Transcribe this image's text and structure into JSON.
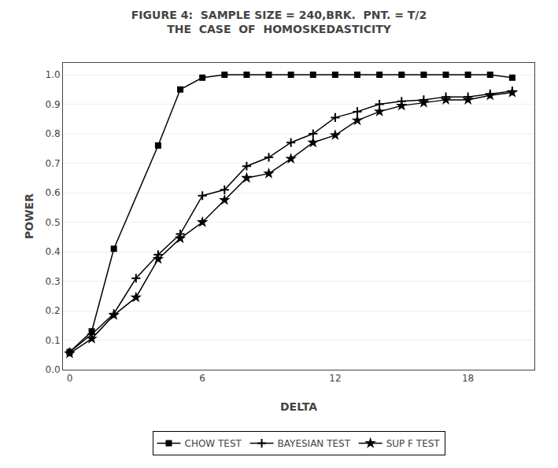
{
  "chart_data": {
    "type": "line",
    "title": "FIGURE 4:  SAMPLE SIZE = 240,BRK.  PNT. = T/2",
    "subtitle": "THE  CASE  OF  HOMOSKEDASTICITY",
    "x_label": "DELTA",
    "y_label": "POWER",
    "xlim": [
      -0.3,
      21
    ],
    "ylim": [
      0,
      1.04
    ],
    "xticks": [
      0,
      6,
      12,
      18
    ],
    "yticks": [
      {
        "value": 0,
        "label": "0.0"
      },
      0.1,
      0.2,
      0.3,
      0.4,
      0.5,
      0.6,
      0.7,
      0.8,
      0.9,
      {
        "value": 1,
        "label": "1.0"
      }
    ],
    "grid": "y",
    "legend": "bottom",
    "series": [
      {
        "name": "CHOW TEST",
        "color": "#000000",
        "marker": "square",
        "x": [
          0,
          1,
          2,
          4,
          5,
          6,
          7,
          8,
          9,
          10,
          11,
          12,
          13,
          14,
          15,
          16,
          17,
          18,
          19,
          20
        ],
        "values": [
          0.06,
          0.13,
          0.41,
          0.76,
          0.95,
          0.99,
          1.0,
          1.0,
          1.0,
          1.0,
          1.0,
          1.0,
          1.0,
          1.0,
          1.0,
          1.0,
          1.0,
          1.0,
          1.0,
          0.99
        ]
      },
      {
        "name": "BAYESIAN TEST",
        "color": "#000000",
        "marker": "plus",
        "x": [
          0,
          1,
          2,
          3,
          4,
          5,
          6,
          7,
          8,
          9,
          10,
          11,
          12,
          13,
          14,
          15,
          16,
          17,
          18,
          19,
          20
        ],
        "values": [
          0.06,
          0.12,
          0.19,
          0.31,
          0.39,
          0.46,
          0.59,
          0.61,
          0.69,
          0.72,
          0.77,
          0.8,
          0.855,
          0.875,
          0.9,
          0.91,
          0.915,
          0.925,
          0.925,
          0.935,
          0.945
        ]
      },
      {
        "name": "SUP F TEST",
        "color": "#000000",
        "marker": "star",
        "x": [
          0,
          1,
          2,
          3,
          4,
          5,
          6,
          7,
          8,
          9,
          10,
          11,
          12,
          13,
          14,
          15,
          16,
          17,
          18,
          19,
          20
        ],
        "values": [
          0.055,
          0.105,
          0.185,
          0.245,
          0.375,
          0.445,
          0.5,
          0.575,
          0.65,
          0.665,
          0.715,
          0.77,
          0.795,
          0.845,
          0.875,
          0.895,
          0.905,
          0.915,
          0.915,
          0.93,
          0.94
        ]
      }
    ]
  }
}
